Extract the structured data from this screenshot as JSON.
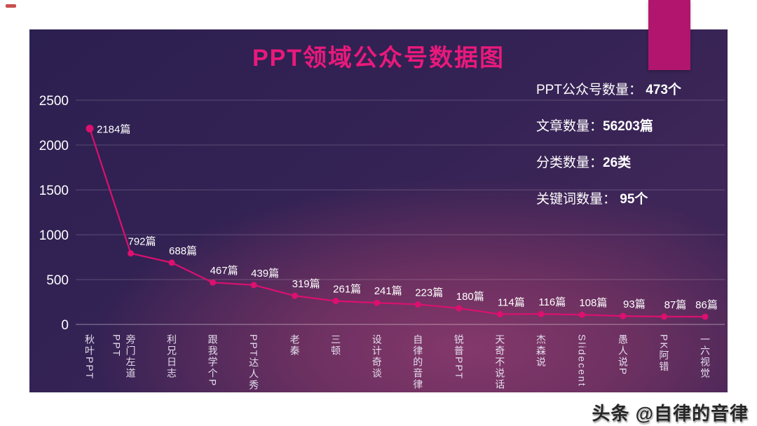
{
  "header": {
    "title": "PPT领域公众号数据图"
  },
  "stats": {
    "items": [
      {
        "label": "PPT公众号数量：",
        "value": " 473个"
      },
      {
        "label": "文章数量：",
        "value": "56203篇"
      },
      {
        "label": "分类数量：",
        "value": "26类"
      },
      {
        "label": "关键词数量：",
        "value": " 95个"
      }
    ]
  },
  "chart_data": {
    "type": "line",
    "title": "PPT领域公众号数据图",
    "categories": [
      "秋叶PPT",
      "旁门左道PPT",
      "利兄日志",
      "跟我学个P",
      "PPT达人秀",
      "老秦",
      "三顿",
      "设计奇谈",
      "自律的音律",
      "锐普PPT",
      "天奇不说话",
      "杰森说",
      "Slidecent",
      "愚人说P",
      "PK阿错",
      "一六视觉"
    ],
    "values": [
      2184,
      792,
      688,
      467,
      439,
      319,
      261,
      241,
      223,
      180,
      114,
      116,
      108,
      93,
      87,
      86
    ],
    "unit": "篇",
    "xlabel": "",
    "ylabel": "",
    "yticks": [
      0,
      500,
      1000,
      1500,
      2000,
      2500
    ],
    "ylim": [
      0,
      2500
    ],
    "grid": true,
    "legend_position": "none",
    "line_color": "#dc106f",
    "marker_color": "#dc106f",
    "label_color": "#ffffff"
  },
  "footer": {
    "watermark": "头条 @自律的音律"
  },
  "colors": {
    "accent_rect": "#b2156d",
    "title": "#e9197b",
    "panel_dark": "#2c2050",
    "panel_glow": "#84386b",
    "grid": "#ffffff",
    "tick_text": "#ffffff",
    "category_text": "#e3dcec"
  }
}
